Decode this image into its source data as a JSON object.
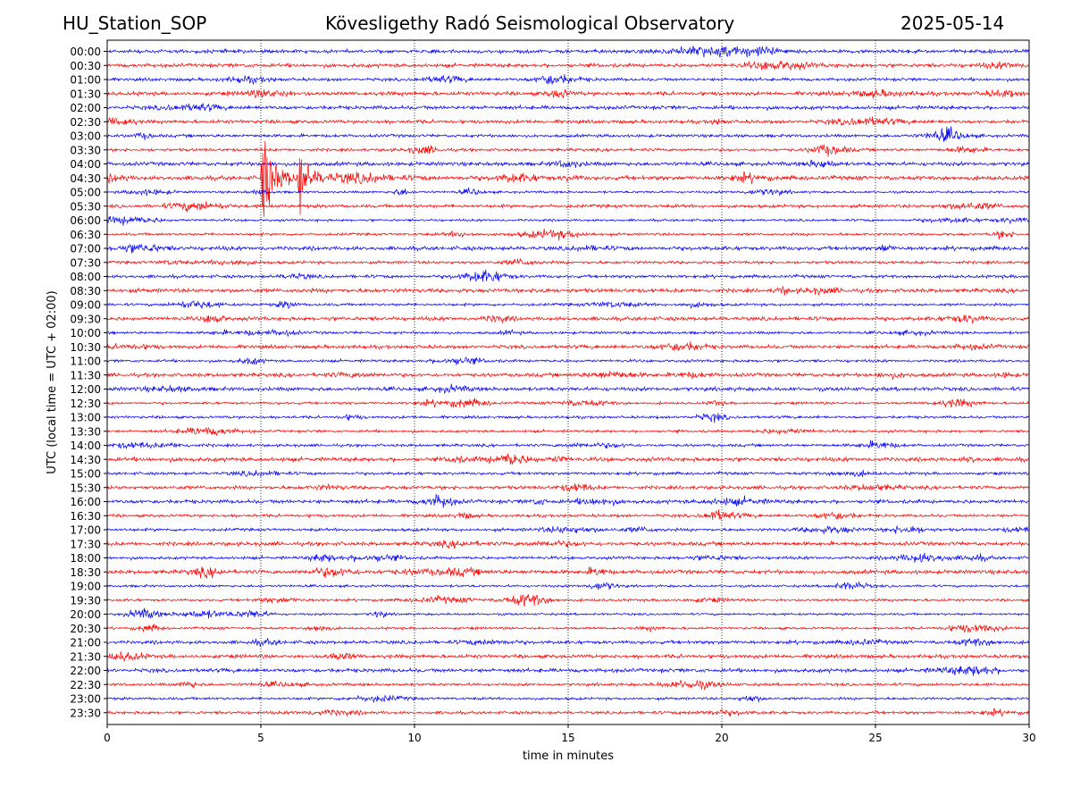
{
  "header": {
    "station": "HU_Station_SOP",
    "observatory": "Köveslig​ethy Radó Seismological Observatory",
    "date": "2025-05-14"
  },
  "chart_data": {
    "type": "line",
    "xlabel": "time in minutes",
    "ylabel": "UTC (local time = UTC + 02:00)",
    "xlim": [
      0,
      30
    ],
    "xticks": [
      0,
      5,
      10,
      15,
      20,
      25,
      30
    ],
    "grid": "vertical dotted lines at 5, 10, 15, 20, 25",
    "row_labels": [
      "00:00",
      "00:30",
      "01:00",
      "01:30",
      "02:00",
      "02:30",
      "03:00",
      "03:30",
      "04:00",
      "04:30",
      "05:00",
      "05:30",
      "06:00",
      "06:30",
      "07:00",
      "07:30",
      "08:00",
      "08:30",
      "09:00",
      "09:30",
      "10:00",
      "10:30",
      "11:00",
      "11:30",
      "12:00",
      "12:30",
      "13:00",
      "13:30",
      "14:00",
      "14:30",
      "15:00",
      "15:30",
      "16:00",
      "16:30",
      "17:00",
      "17:30",
      "18:00",
      "18:30",
      "19:00",
      "19:30",
      "20:00",
      "20:30",
      "21:00",
      "21:30",
      "22:00",
      "22:30",
      "23:00",
      "23:30"
    ],
    "trace_colors": [
      "#0000ff",
      "#ff0000"
    ],
    "events": [
      {
        "row": "04:30",
        "onset_min": 5.0,
        "secondary_min": 6.2,
        "coda_end_min": 10.0,
        "color": "#ff0000"
      }
    ]
  }
}
